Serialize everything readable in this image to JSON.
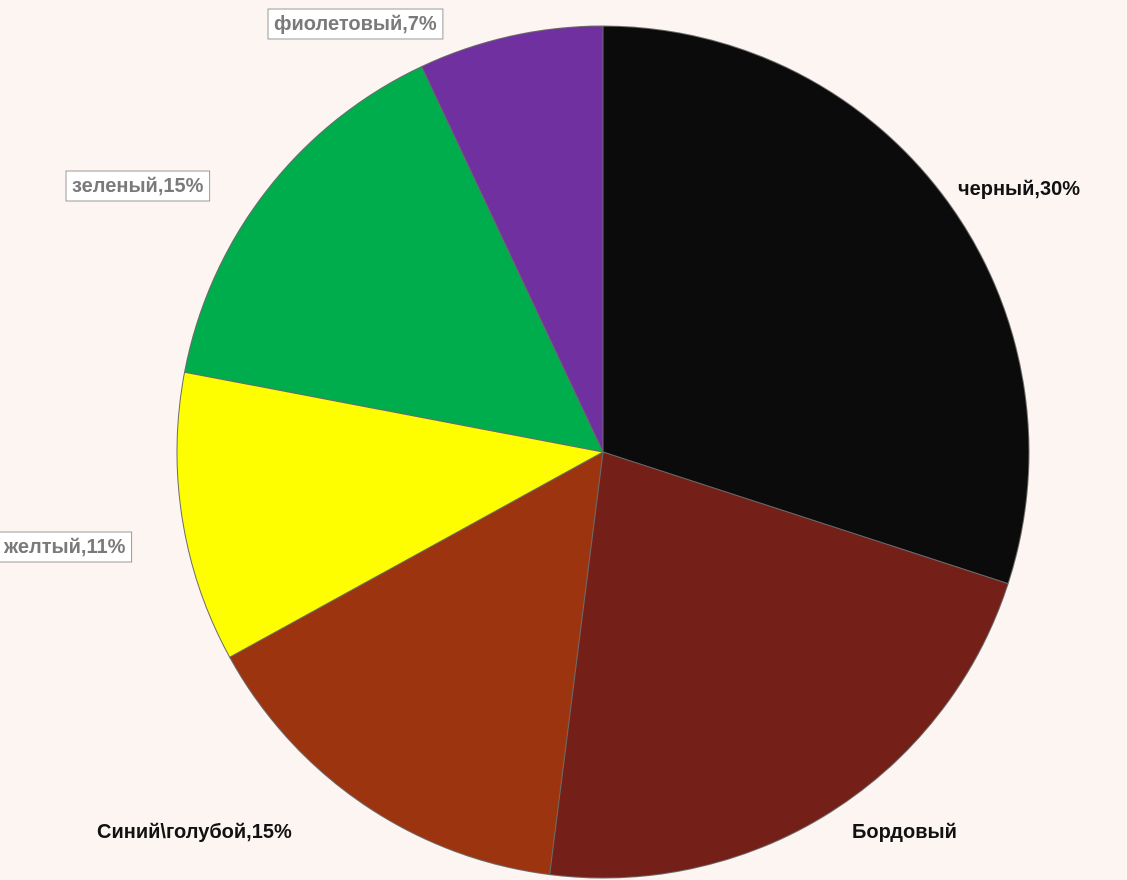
{
  "chart_data": {
    "type": "pie",
    "title": "",
    "slices": [
      {
        "label": "черный,30%",
        "value": 30,
        "color": "#0b0b0b",
        "boxed": false
      },
      {
        "label": "Бордовый",
        "value": 22,
        "color": "#741f17",
        "boxed": false
      },
      {
        "label": "Синий\\голубой,15%",
        "value": 15,
        "color": "#9c3410",
        "boxed": false
      },
      {
        "label": "желтый,11%",
        "value": 11,
        "color": "#fefe00",
        "boxed": true
      },
      {
        "label": "зеленый,15%",
        "value": 15,
        "color": "#00ad4d",
        "boxed": true
      },
      {
        "label": "фиолетовый,7%",
        "value": 7,
        "color": "#7030a0",
        "boxed": true
      }
    ]
  }
}
